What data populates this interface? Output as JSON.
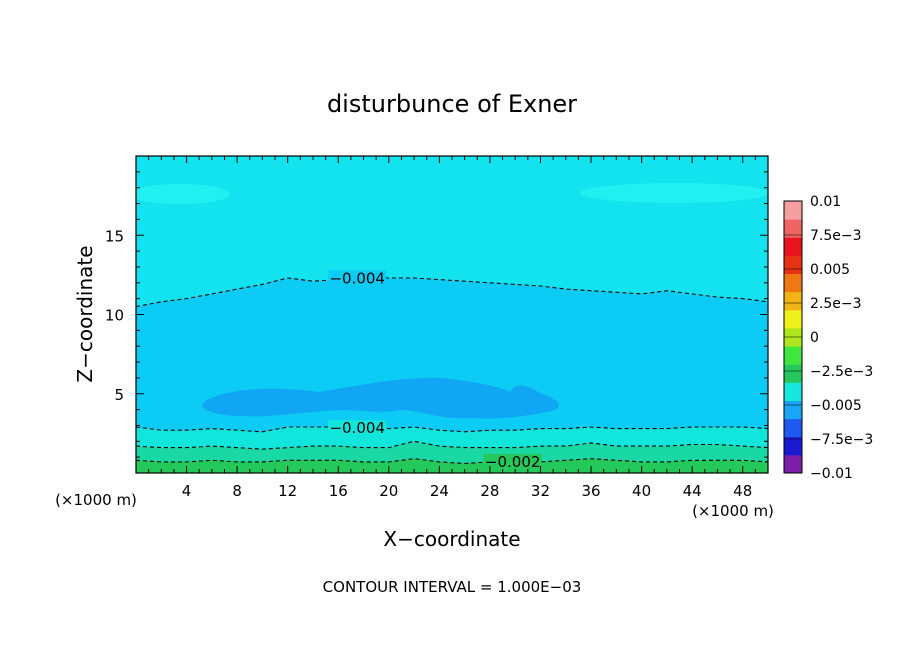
{
  "chart_data": {
    "type": "contour",
    "title": "disturbunce of Exner",
    "xlabel": "X−coordinate",
    "ylabel": "Z−coordinate",
    "x_unit_left": "(×1000 m)",
    "x_unit_right": "(×1000 m)",
    "footer": "CONTOUR INTERVAL = 1.000E−03",
    "xlim": [
      0,
      50
    ],
    "ylim": [
      0,
      20
    ],
    "x_ticks": [
      4,
      8,
      12,
      16,
      20,
      24,
      28,
      32,
      36,
      40,
      44,
      48
    ],
    "x_tick_labels": [
      "4",
      "8",
      "12",
      "16",
      "20",
      "24",
      "28",
      "32",
      "36",
      "40",
      "44",
      "48"
    ],
    "y_ticks": [
      5,
      10,
      15
    ],
    "y_tick_labels": [
      "5",
      "10",
      "15"
    ],
    "colorbar": {
      "levels": [
        -0.01,
        -0.0075,
        -0.005,
        -0.0025,
        0,
        0.0025,
        0.005,
        0.0075,
        0.01
      ],
      "labels": [
        "0.01",
        "7.5e−3",
        "0.005",
        "2.5e−3",
        "0",
        "−2.5e−3",
        "−0.005",
        "−7.5e−3",
        "−0.01"
      ],
      "colors": [
        "#7a1fa8",
        "#1a1ad0",
        "#1e5af0",
        "#1aa6f4",
        "#19e6dc",
        "#25c85a",
        "#3ee63e",
        "#aee61e",
        "#f0f01a",
        "#f0b414",
        "#f07814",
        "#e83214",
        "#e8141e",
        "#f06464",
        "#f4a0a0"
      ]
    },
    "contour_lines": [
      {
        "label": "−0.004",
        "level": -0.004,
        "x": [
          0,
          2,
          4,
          6,
          8,
          10,
          12,
          14,
          16,
          18,
          20,
          22,
          24,
          26,
          28,
          30,
          32,
          34,
          36,
          38,
          40,
          42,
          44,
          46,
          48,
          50
        ],
        "z": [
          10.5,
          10.8,
          11.0,
          11.3,
          11.6,
          11.9,
          12.3,
          12.1,
          12.2,
          12.3,
          12.3,
          12.3,
          12.2,
          12.1,
          12.0,
          11.9,
          11.8,
          11.6,
          11.5,
          11.4,
          11.3,
          11.5,
          11.3,
          11.1,
          11.0,
          10.8
        ]
      },
      {
        "label": "−0.004",
        "level": -0.004,
        "x": [
          0,
          2,
          4,
          6,
          8,
          10,
          12,
          14,
          16,
          18,
          20,
          22,
          24,
          26,
          28,
          30,
          32,
          34,
          36,
          38,
          40,
          42,
          44,
          46,
          48,
          50
        ],
        "z": [
          2.9,
          2.7,
          2.7,
          2.8,
          2.7,
          2.6,
          2.9,
          2.9,
          2.9,
          2.8,
          2.8,
          2.9,
          2.7,
          2.6,
          2.7,
          2.7,
          2.8,
          2.8,
          2.9,
          2.8,
          2.8,
          2.8,
          2.9,
          2.9,
          2.9,
          2.8
        ]
      },
      {
        "label": "",
        "level": -0.003,
        "x": [
          0,
          2,
          4,
          6,
          8,
          10,
          12,
          14,
          16,
          18,
          20,
          22,
          24,
          26,
          28,
          30,
          32,
          34,
          36,
          38,
          40,
          42,
          44,
          46,
          48,
          50
        ],
        "z": [
          1.7,
          1.6,
          1.6,
          1.7,
          1.6,
          1.5,
          1.6,
          1.7,
          1.7,
          1.6,
          1.6,
          2.0,
          1.7,
          1.6,
          1.6,
          1.6,
          1.7,
          1.7,
          1.9,
          1.7,
          1.7,
          1.7,
          1.8,
          1.8,
          1.7,
          1.6
        ]
      },
      {
        "label": "−0.002",
        "level": -0.002,
        "x": [
          0,
          2,
          4,
          6,
          8,
          10,
          12,
          14,
          16,
          18,
          20,
          22,
          24,
          26,
          28,
          30,
          32,
          34,
          36,
          38,
          40,
          42,
          44,
          46,
          48,
          50
        ],
        "z": [
          0.8,
          0.7,
          0.7,
          0.8,
          0.7,
          0.7,
          0.8,
          0.8,
          0.8,
          0.7,
          0.7,
          0.9,
          0.7,
          0.6,
          0.7,
          0.7,
          0.7,
          0.8,
          0.9,
          0.8,
          0.7,
          0.7,
          0.8,
          0.8,
          0.8,
          0.7
        ]
      }
    ]
  }
}
